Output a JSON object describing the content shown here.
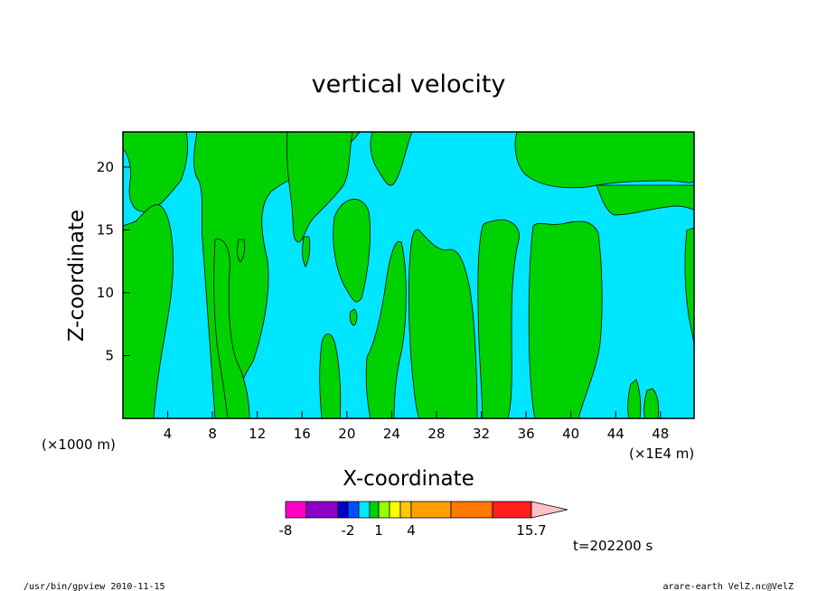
{
  "chart_data": {
    "type": "heatmap",
    "title": "vertical velocity",
    "xlabel": "X-coordinate",
    "ylabel": "Z-coordinate",
    "x_unit_left": "(×1000 m)",
    "x_unit_right": "(×1E4 m)",
    "xlim": [
      0,
      51
    ],
    "ylim": [
      0,
      22.8
    ],
    "xticks": [
      4,
      8,
      12,
      16,
      20,
      24,
      28,
      32,
      36,
      40,
      44,
      48
    ],
    "yticks": [
      5,
      10,
      15,
      20
    ],
    "colorbar": {
      "levels": [
        -8,
        -6.5,
        -4,
        -3,
        -2,
        -1,
        0,
        1,
        2,
        3,
        4,
        7,
        10,
        13,
        15.7
      ],
      "colors": [
        "#ff00c8",
        "#8c00c8",
        "#0000c8",
        "#0050ff",
        "#00e6ff",
        "#00d200",
        "#96ff00",
        "#ffff00",
        "#ffc800",
        "#ffa000",
        "#ff7800",
        "#ff1e1e",
        "#ff8080",
        "#ffc0c8"
      ],
      "tick_labels": [
        "-8",
        "-2",
        "1",
        "4",
        "15.7"
      ],
      "tick_values": [
        -8,
        -2,
        1,
        4,
        15.7
      ]
    },
    "time_label": "t=202200 s",
    "regions": {
      "negative_color": "#00e6ff",
      "positive_color": "#00d200"
    }
  },
  "footer": {
    "left": "/usr/bin/gpview   2010-11-15",
    "right": "arare-earth_VelZ.nc@VelZ"
  }
}
